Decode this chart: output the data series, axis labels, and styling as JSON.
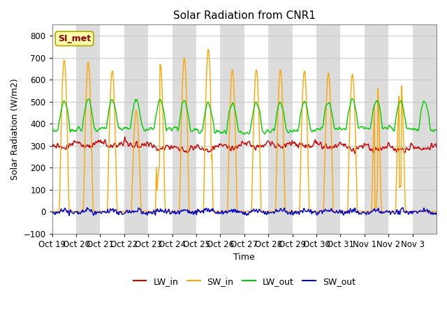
{
  "title": "Solar Radiation from CNR1",
  "xlabel": "Time",
  "ylabel": "Solar Radiation (W/m2)",
  "ylim": [
    -100,
    850
  ],
  "yticks": [
    -100,
    0,
    100,
    200,
    300,
    400,
    500,
    600,
    700,
    800
  ],
  "annotation_text": "SI_met",
  "annotation_color": "#8B0000",
  "annotation_bg": "#FFFFAA",
  "plot_bg": "#FFFFFF",
  "band_color": "#DCDCDC",
  "legend_entries": [
    "LW_in",
    "SW_in",
    "LW_out",
    "SW_out"
  ],
  "line_colors": [
    "#CC0000",
    "#FFA500",
    "#00CC00",
    "#0000CC"
  ],
  "tick_labels": [
    "Oct 19",
    "Oct 20",
    "Oct 21",
    "Oct 22",
    "Oct 23",
    "Oct 24",
    "Oct 25",
    "Oct 26",
    "Oct 27",
    "Oct 28",
    "Oct 29",
    "Oct 30",
    "Oct 31",
    "Nov 1",
    "Nov 2",
    "Nov 3"
  ],
  "n_days": 16,
  "lw_in_base": 310,
  "lw_in_daily_amp": 20,
  "lw_out_base": 370,
  "lw_out_daily_amp": 130,
  "sw_out_base": -5,
  "sw_out_noise": 8
}
